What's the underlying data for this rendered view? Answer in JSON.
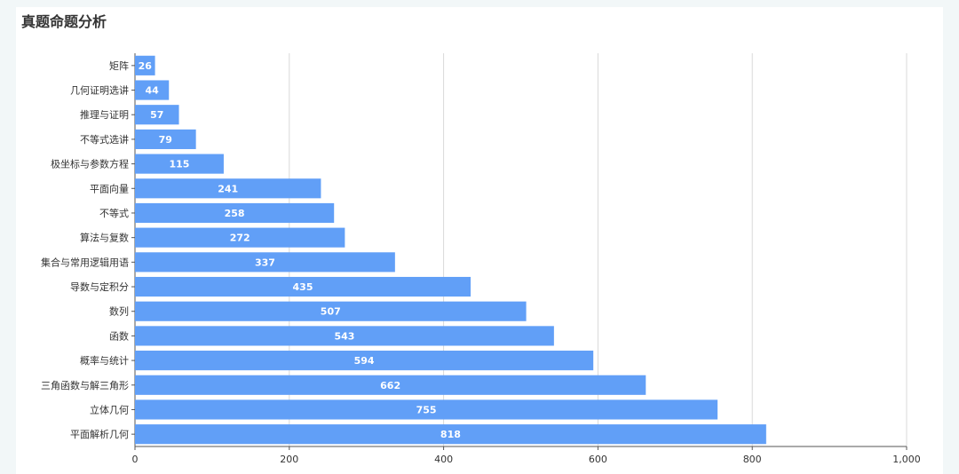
{
  "header": {
    "title": "真题命题分析"
  },
  "colors": {
    "bar": "#619ff7",
    "grid": "#d9d9d9",
    "axis": "#555555"
  },
  "chart_data": {
    "type": "bar",
    "orientation": "horizontal",
    "title": "真题命题分析",
    "categories": [
      "矩阵",
      "几何证明选讲",
      "推理与证明",
      "不等式选讲",
      "极坐标与参数方程",
      "平面向量",
      "不等式",
      "算法与复数",
      "集合与常用逻辑用语",
      "导数与定积分",
      "数列",
      "函数",
      "概率与统计",
      "三角函数与解三角形",
      "立体几何",
      "平面解析几何"
    ],
    "values": [
      26,
      44,
      57,
      79,
      115,
      241,
      258,
      272,
      337,
      435,
      507,
      543,
      594,
      662,
      755,
      818
    ],
    "xlim": [
      0,
      1000
    ],
    "xticks": [
      0,
      200,
      400,
      600,
      800,
      1000
    ],
    "xtick_labels": [
      "0",
      "200",
      "400",
      "600",
      "800",
      "1,000"
    ],
    "grid": "vertical",
    "data_labels": true
  }
}
